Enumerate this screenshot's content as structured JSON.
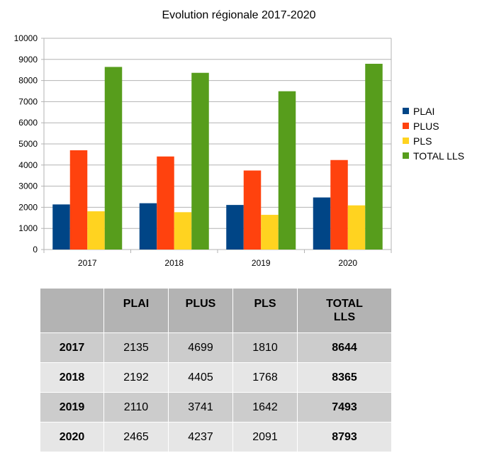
{
  "chart_data": {
    "type": "bar",
    "title": "Evolution régionale 2017-2020",
    "categories": [
      "2017",
      "2018",
      "2019",
      "2020"
    ],
    "series": [
      {
        "name": "PLAI",
        "color": "#004586",
        "values": [
          2135,
          2192,
          2110,
          2465
        ]
      },
      {
        "name": "PLUS",
        "color": "#ff420e",
        "values": [
          4699,
          4405,
          3741,
          4237
        ]
      },
      {
        "name": "PLS",
        "color": "#ffd320",
        "values": [
          1810,
          1768,
          1642,
          2091
        ]
      },
      {
        "name": "TOTAL LLS",
        "color": "#579d1c",
        "values": [
          8644,
          8365,
          7493,
          8793
        ]
      }
    ],
    "ylim": [
      0,
      10000
    ],
    "yticks": [
      "0",
      "1000",
      "2000",
      "3000",
      "4000",
      "5000",
      "6000",
      "7000",
      "8000",
      "9000",
      "10000"
    ],
    "grid": true,
    "legend": "right"
  },
  "table": {
    "headers": [
      "",
      "PLAI",
      "PLUS",
      "PLS",
      "TOTAL LLS"
    ],
    "rows": [
      {
        "label": "2017",
        "cells": [
          "2135",
          "4699",
          "1810",
          "8644"
        ]
      },
      {
        "label": "2018",
        "cells": [
          "2192",
          "4405",
          "1768",
          "8365"
        ]
      },
      {
        "label": "2019",
        "cells": [
          "2110",
          "3741",
          "1642",
          "7493"
        ]
      },
      {
        "label": "2020",
        "cells": [
          "2465",
          "4237",
          "2091",
          "8793"
        ]
      }
    ]
  }
}
